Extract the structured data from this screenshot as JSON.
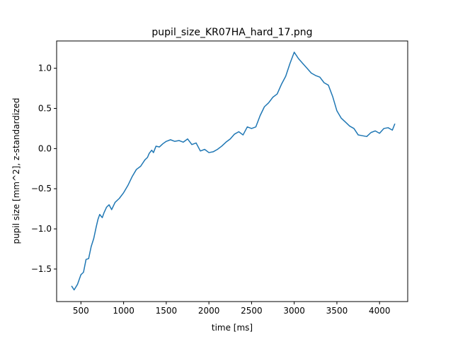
{
  "chart_data": {
    "type": "line",
    "title": "pupil_size_KR07HA_hard_17.png",
    "xlabel": "time [ms]",
    "ylabel": "pupil size [mm^2], z-standardized",
    "xlim": [
      215,
      4330
    ],
    "ylim": [
      -1.905,
      1.34
    ],
    "xticks": [
      500,
      1000,
      1500,
      2000,
      2500,
      3000,
      3500,
      4000
    ],
    "xtick_labels": [
      "500",
      "1000",
      "1500",
      "2000",
      "2500",
      "3000",
      "3500",
      "4000"
    ],
    "yticks": [
      -1.5,
      -1.0,
      -0.5,
      0.0,
      0.5,
      1.0
    ],
    "ytick_labels": [
      "−1.5",
      "−1.0",
      "−0.5",
      "0.0",
      "0.5",
      "1.0"
    ],
    "grid": false,
    "series_color": "#1f77b4",
    "series": [
      {
        "x": [
          390,
          420,
          460,
          500,
          530,
          560,
          590,
          620,
          650,
          680,
          700,
          720,
          750,
          770,
          800,
          830,
          860,
          900,
          950,
          1000,
          1050,
          1100,
          1150,
          1200,
          1250,
          1280,
          1300,
          1330,
          1350,
          1380,
          1420,
          1460,
          1500,
          1550,
          1600,
          1650,
          1700,
          1750,
          1800,
          1850,
          1900,
          1950,
          2000,
          2050,
          2100,
          2150,
          2200,
          2250,
          2300,
          2350,
          2400,
          2450,
          2500,
          2550,
          2600,
          2650,
          2700,
          2750,
          2800,
          2850,
          2900,
          2950,
          3000,
          3050,
          3100,
          3150,
          3200,
          3250,
          3300,
          3350,
          3400,
          3450,
          3500,
          3550,
          3600,
          3650,
          3700,
          3750,
          3800,
          3850,
          3900,
          3950,
          4000,
          4050,
          4100,
          4150,
          4180
        ],
        "y": [
          -1.71,
          -1.76,
          -1.69,
          -1.57,
          -1.54,
          -1.38,
          -1.37,
          -1.22,
          -1.12,
          -0.97,
          -0.88,
          -0.82,
          -0.86,
          -0.8,
          -0.73,
          -0.7,
          -0.76,
          -0.67,
          -0.62,
          -0.55,
          -0.46,
          -0.35,
          -0.26,
          -0.22,
          -0.14,
          -0.11,
          -0.06,
          -0.02,
          -0.05,
          0.03,
          0.02,
          0.06,
          0.09,
          0.11,
          0.09,
          0.1,
          0.08,
          0.12,
          0.05,
          0.07,
          -0.03,
          -0.01,
          -0.05,
          -0.04,
          -0.01,
          0.03,
          0.08,
          0.12,
          0.18,
          0.21,
          0.17,
          0.27,
          0.25,
          0.27,
          0.41,
          0.52,
          0.57,
          0.64,
          0.68,
          0.8,
          0.9,
          1.06,
          1.2,
          1.12,
          1.06,
          1.0,
          0.94,
          0.91,
          0.89,
          0.82,
          0.79,
          0.65,
          0.47,
          0.38,
          0.33,
          0.28,
          0.25,
          0.17,
          0.16,
          0.15,
          0.2,
          0.22,
          0.19,
          0.25,
          0.26,
          0.23,
          0.31
        ]
      }
    ]
  }
}
